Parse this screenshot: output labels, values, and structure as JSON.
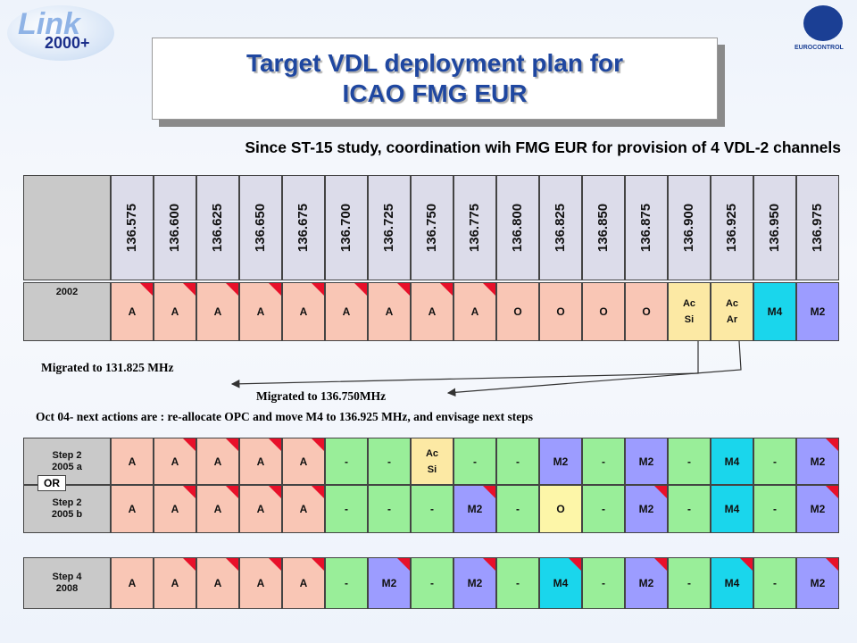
{
  "logo": {
    "text": "Link",
    "sub": "2000+"
  },
  "org": "EUROCONTROL",
  "title": [
    "Target VDL deployment plan for",
    "ICAO FMG EUR"
  ],
  "subtitle": "Since ST-15 study, coordination wih FMG EUR for provision of 4 VDL-2 channels",
  "frequencies": [
    "136.575",
    "136.600",
    "136.625",
    "136.650",
    "136.675",
    "136.700",
    "136.725",
    "136.750",
    "136.775",
    "136.800",
    "136.825",
    "136.850",
    "136.875",
    "136.900",
    "136.925",
    "136.950",
    "136.975"
  ],
  "rows": [
    {
      "label": "2002",
      "cells": [
        {
          "text": "A",
          "color": "#f9c6b5",
          "corner": true
        },
        {
          "text": "A",
          "color": "#f9c6b5",
          "corner": true
        },
        {
          "text": "A",
          "color": "#f9c6b5",
          "corner": true
        },
        {
          "text": "A",
          "color": "#f9c6b5",
          "corner": true
        },
        {
          "text": "A",
          "color": "#f9c6b5",
          "corner": true
        },
        {
          "text": "A",
          "color": "#f9c6b5",
          "corner": true
        },
        {
          "text": "A",
          "color": "#f9c6b5",
          "corner": true
        },
        {
          "text": "A",
          "color": "#f9c6b5",
          "corner": true
        },
        {
          "text": "A",
          "color": "#f9c6b5",
          "corner": true
        },
        {
          "text": "O",
          "color": "#f9c6b5",
          "corner": false
        },
        {
          "text": "O",
          "color": "#f9c6b5",
          "corner": false
        },
        {
          "text": "O",
          "color": "#f9c6b5",
          "corner": false
        },
        {
          "text": "O",
          "color": "#f9c6b5",
          "corner": false
        },
        {
          "text": "Ac\nSi",
          "color": "#fce9a4",
          "corner": false
        },
        {
          "text": "Ac\nAr",
          "color": "#fce9a4",
          "corner": false
        },
        {
          "text": "M4",
          "color": "#1ad6ec",
          "corner": false
        },
        {
          "text": "M2",
          "color": "#9c9cff",
          "corner": false
        }
      ]
    },
    {
      "label": "Step 2\n2005 a",
      "cells": [
        {
          "text": "A",
          "color": "#f9c6b5",
          "corner": false
        },
        {
          "text": "A",
          "color": "#f9c6b5",
          "corner": true
        },
        {
          "text": "A",
          "color": "#f9c6b5",
          "corner": true
        },
        {
          "text": "A",
          "color": "#f9c6b5",
          "corner": true
        },
        {
          "text": "A",
          "color": "#f9c6b5",
          "corner": true
        },
        {
          "text": "-",
          "color": "#99ee99",
          "corner": false
        },
        {
          "text": "-",
          "color": "#99ee99",
          "corner": false
        },
        {
          "text": "Ac\nSi",
          "color": "#fce9a4",
          "corner": false
        },
        {
          "text": "-",
          "color": "#99ee99",
          "corner": false
        },
        {
          "text": "-",
          "color": "#99ee99",
          "corner": false
        },
        {
          "text": "M2",
          "color": "#9c9cff",
          "corner": false
        },
        {
          "text": "-",
          "color": "#99ee99",
          "corner": false
        },
        {
          "text": "M2",
          "color": "#9c9cff",
          "corner": false
        },
        {
          "text": "-",
          "color": "#99ee99",
          "corner": false
        },
        {
          "text": "M4",
          "color": "#1ad6ec",
          "corner": false
        },
        {
          "text": "-",
          "color": "#99ee99",
          "corner": false
        },
        {
          "text": "M2",
          "color": "#9c9cff",
          "corner": true
        }
      ]
    },
    {
      "label": "Step 2\n2005 b",
      "cells": [
        {
          "text": "A",
          "color": "#f9c6b5",
          "corner": false
        },
        {
          "text": "A",
          "color": "#f9c6b5",
          "corner": true
        },
        {
          "text": "A",
          "color": "#f9c6b5",
          "corner": true
        },
        {
          "text": "A",
          "color": "#f9c6b5",
          "corner": true
        },
        {
          "text": "A",
          "color": "#f9c6b5",
          "corner": true
        },
        {
          "text": "-",
          "color": "#99ee99",
          "corner": false
        },
        {
          "text": "-",
          "color": "#99ee99",
          "corner": false
        },
        {
          "text": "-",
          "color": "#99ee99",
          "corner": false
        },
        {
          "text": "M2",
          "color": "#9c9cff",
          "corner": true
        },
        {
          "text": "-",
          "color": "#99ee99",
          "corner": false
        },
        {
          "text": "O",
          "color": "#fdf6a8",
          "corner": false
        },
        {
          "text": "-",
          "color": "#99ee99",
          "corner": false
        },
        {
          "text": "M2",
          "color": "#9c9cff",
          "corner": true
        },
        {
          "text": "-",
          "color": "#99ee99",
          "corner": false
        },
        {
          "text": "M4",
          "color": "#1ad6ec",
          "corner": false
        },
        {
          "text": "-",
          "color": "#99ee99",
          "corner": false
        },
        {
          "text": "M2",
          "color": "#9c9cff",
          "corner": true
        }
      ]
    },
    {
      "label": "Step 4\n2008",
      "cells": [
        {
          "text": "A",
          "color": "#f9c6b5",
          "corner": false
        },
        {
          "text": "A",
          "color": "#f9c6b5",
          "corner": true
        },
        {
          "text": "A",
          "color": "#f9c6b5",
          "corner": true
        },
        {
          "text": "A",
          "color": "#f9c6b5",
          "corner": true
        },
        {
          "text": "A",
          "color": "#f9c6b5",
          "corner": true
        },
        {
          "text": "-",
          "color": "#99ee99",
          "corner": false
        },
        {
          "text": "M2",
          "color": "#9c9cff",
          "corner": true
        },
        {
          "text": "-",
          "color": "#99ee99",
          "corner": false
        },
        {
          "text": "M2",
          "color": "#9c9cff",
          "corner": true
        },
        {
          "text": "-",
          "color": "#99ee99",
          "corner": false
        },
        {
          "text": "M4",
          "color": "#1ad6ec",
          "corner": true
        },
        {
          "text": "-",
          "color": "#99ee99",
          "corner": false
        },
        {
          "text": "M2",
          "color": "#9c9cff",
          "corner": true
        },
        {
          "text": "-",
          "color": "#99ee99",
          "corner": false
        },
        {
          "text": "M4",
          "color": "#1ad6ec",
          "corner": true
        },
        {
          "text": "-",
          "color": "#99ee99",
          "corner": false
        },
        {
          "text": "M2",
          "color": "#9c9cff",
          "corner": true
        }
      ]
    }
  ],
  "notes": {
    "migrated_a": "Migrated to 131.825 MHz",
    "migrated_b": "Migrated to 136.750MHz",
    "next": "Oct 04- next actions are : re-allocate OPC and move M4 to 136.925 MHz, and envisage next steps",
    "or": "OR"
  }
}
